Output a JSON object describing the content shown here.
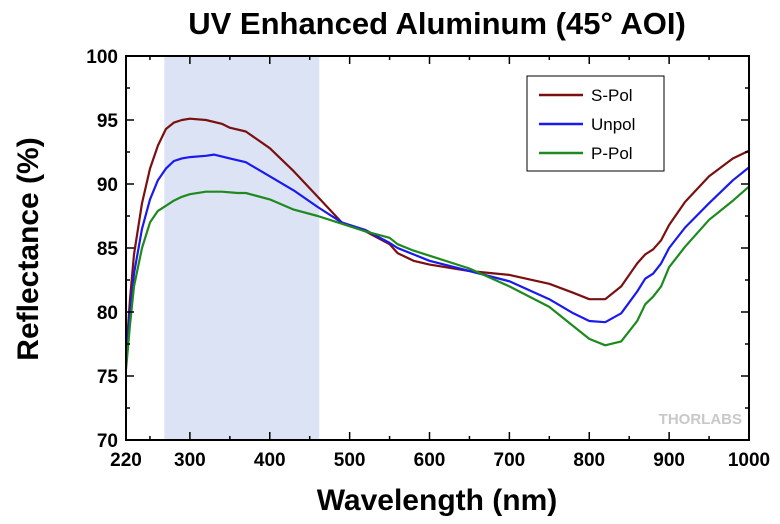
{
  "chart_data": {
    "type": "line",
    "title": "UV Enhanced Aluminum (45° AOI)",
    "xlabel": "Wavelength (nm)",
    "ylabel": "Reflectance (%)",
    "xlim": [
      220,
      1000
    ],
    "ylim": [
      70,
      100
    ],
    "x_ticks": [
      220,
      300,
      400,
      500,
      600,
      700,
      800,
      900,
      1000
    ],
    "y_ticks": [
      70,
      75,
      80,
      85,
      90,
      95,
      100
    ],
    "grid": false,
    "legend_position": "top-right",
    "highlight_band": {
      "x_start": 268,
      "x_end": 462,
      "color": "#dbe3f5"
    },
    "watermark": "THORLABS",
    "series": [
      {
        "name": "S-Pol",
        "color": "#7b1010",
        "x": [
          220,
          225,
          230,
          240,
          250,
          260,
          270,
          280,
          290,
          300,
          320,
          340,
          350,
          370,
          400,
          430,
          460,
          490,
          520,
          550,
          560,
          580,
          600,
          650,
          700,
          750,
          780,
          800,
          820,
          840,
          860,
          870,
          880,
          890,
          900,
          920,
          950,
          980,
          1000
        ],
        "y": [
          76.5,
          81.0,
          84.5,
          88.5,
          91.2,
          93.0,
          94.3,
          94.8,
          95.0,
          95.1,
          95.0,
          94.7,
          94.4,
          94.1,
          92.8,
          91.0,
          89.0,
          87.0,
          86.3,
          85.3,
          84.6,
          84.0,
          83.7,
          83.2,
          82.9,
          82.2,
          81.5,
          81.0,
          81.0,
          82.0,
          83.8,
          84.5,
          84.9,
          85.6,
          86.8,
          88.6,
          90.6,
          92.0,
          92.6
        ]
      },
      {
        "name": "Unpol",
        "color": "#1a1aee",
        "x": [
          220,
          225,
          230,
          240,
          250,
          260,
          270,
          280,
          290,
          300,
          320,
          330,
          350,
          370,
          400,
          430,
          460,
          490,
          520,
          550,
          560,
          580,
          600,
          650,
          700,
          750,
          780,
          800,
          820,
          840,
          860,
          870,
          880,
          890,
          900,
          920,
          950,
          980,
          1000
        ],
        "y": [
          76.0,
          80.0,
          83.0,
          86.5,
          88.8,
          90.3,
          91.2,
          91.8,
          92.0,
          92.1,
          92.2,
          92.3,
          92.0,
          91.7,
          90.6,
          89.5,
          88.2,
          87.0,
          86.4,
          85.4,
          85.0,
          84.5,
          84.0,
          83.2,
          82.4,
          81.0,
          79.9,
          79.3,
          79.2,
          79.9,
          81.6,
          82.6,
          83.0,
          83.8,
          85.0,
          86.6,
          88.5,
          90.3,
          91.3
        ]
      },
      {
        "name": "P-Pol",
        "color": "#1e8a1e",
        "x": [
          220,
          225,
          230,
          240,
          250,
          260,
          270,
          280,
          290,
          300,
          320,
          340,
          360,
          370,
          400,
          430,
          460,
          490,
          520,
          550,
          560,
          580,
          600,
          650,
          700,
          750,
          780,
          800,
          820,
          840,
          860,
          870,
          880,
          890,
          900,
          920,
          950,
          980,
          1000
        ],
        "y": [
          75.5,
          79.0,
          82.0,
          85.0,
          87.0,
          87.9,
          88.3,
          88.7,
          89.0,
          89.2,
          89.4,
          89.4,
          89.3,
          89.3,
          88.8,
          88.0,
          87.5,
          86.9,
          86.3,
          85.8,
          85.3,
          84.8,
          84.4,
          83.4,
          82.0,
          80.4,
          78.9,
          77.9,
          77.4,
          77.7,
          79.3,
          80.6,
          81.2,
          82.0,
          83.5,
          85.1,
          87.2,
          88.7,
          89.8
        ]
      }
    ]
  }
}
